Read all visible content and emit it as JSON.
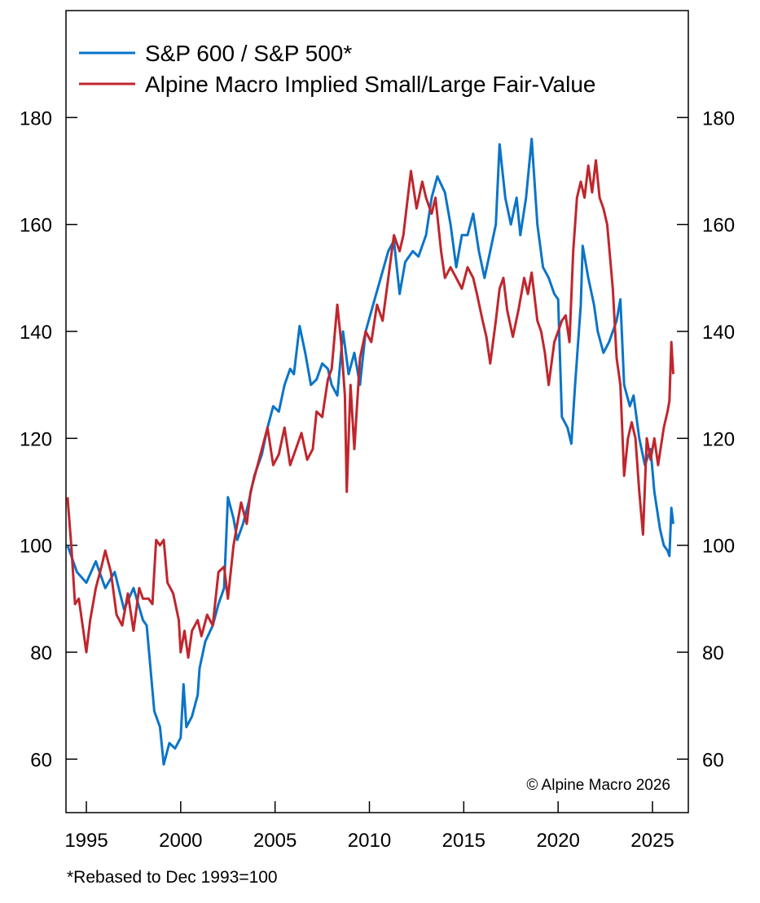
{
  "chart_data": {
    "type": "line",
    "title": "",
    "xlabel": "",
    "ylabel": "",
    "xlim": [
      1993.92,
      2026.9
    ],
    "ylim": [
      50,
      200
    ],
    "x_ticks": [
      1995,
      2000,
      2005,
      2010,
      2015,
      2020,
      2025
    ],
    "x_tick_labels": [
      "1995",
      "2000",
      "2005",
      "2010",
      "2015",
      "2020",
      "2025"
    ],
    "y_ticks": [
      60,
      80,
      100,
      120,
      140,
      160,
      180
    ],
    "y_tick_labels": [
      "60",
      "80",
      "100",
      "120",
      "140",
      "160",
      "180"
    ],
    "y_axis_sides": [
      "left",
      "right"
    ],
    "grid": false,
    "legend_placement": "top-left",
    "annotation": "© Alpine Macro 2026",
    "footnote": "*Rebased to Dec 1993=100",
    "series": [
      {
        "name": "S&P 600 / S&P 500*",
        "color": "#0a74c9",
        "points": [
          [
            1994.0,
            100
          ],
          [
            1994.5,
            95
          ],
          [
            1995.0,
            93
          ],
          [
            1995.5,
            97
          ],
          [
            1996.0,
            92
          ],
          [
            1996.5,
            95
          ],
          [
            1997.0,
            88
          ],
          [
            1997.5,
            92
          ],
          [
            1998.0,
            86
          ],
          [
            1998.2,
            85
          ],
          [
            1998.6,
            69
          ],
          [
            1998.9,
            66
          ],
          [
            1999.1,
            59
          ],
          [
            1999.4,
            63
          ],
          [
            1999.7,
            62
          ],
          [
            2000.0,
            64
          ],
          [
            2000.15,
            74
          ],
          [
            2000.3,
            66
          ],
          [
            2000.6,
            68
          ],
          [
            2000.9,
            72
          ],
          [
            2001.0,
            77
          ],
          [
            2001.3,
            82
          ],
          [
            2001.7,
            85
          ],
          [
            2002.0,
            89
          ],
          [
            2002.3,
            92
          ],
          [
            2002.5,
            109
          ],
          [
            2002.8,
            105
          ],
          [
            2003.0,
            101
          ],
          [
            2003.3,
            104
          ],
          [
            2003.6,
            108
          ],
          [
            2003.9,
            113
          ],
          [
            2004.3,
            117
          ],
          [
            2004.6,
            122
          ],
          [
            2004.9,
            126
          ],
          [
            2005.2,
            125
          ],
          [
            2005.5,
            130
          ],
          [
            2005.8,
            133
          ],
          [
            2006.0,
            132
          ],
          [
            2006.3,
            141
          ],
          [
            2006.6,
            136
          ],
          [
            2006.9,
            130
          ],
          [
            2007.2,
            131
          ],
          [
            2007.5,
            134
          ],
          [
            2007.8,
            133
          ],
          [
            2008.0,
            130
          ],
          [
            2008.3,
            128
          ],
          [
            2008.6,
            140
          ],
          [
            2008.9,
            132
          ],
          [
            2009.2,
            136
          ],
          [
            2009.5,
            130
          ],
          [
            2009.8,
            140
          ],
          [
            2010.2,
            145
          ],
          [
            2010.6,
            150
          ],
          [
            2011.0,
            155
          ],
          [
            2011.3,
            157
          ],
          [
            2011.6,
            147
          ],
          [
            2011.9,
            153
          ],
          [
            2012.3,
            155
          ],
          [
            2012.6,
            154
          ],
          [
            2013.0,
            158
          ],
          [
            2013.3,
            165
          ],
          [
            2013.6,
            169
          ],
          [
            2014.0,
            166
          ],
          [
            2014.3,
            160
          ],
          [
            2014.6,
            152
          ],
          [
            2014.9,
            158
          ],
          [
            2015.2,
            158
          ],
          [
            2015.5,
            162
          ],
          [
            2015.8,
            155
          ],
          [
            2016.1,
            150
          ],
          [
            2016.4,
            155
          ],
          [
            2016.7,
            160
          ],
          [
            2016.9,
            175
          ],
          [
            2017.2,
            165
          ],
          [
            2017.5,
            160
          ],
          [
            2017.8,
            165
          ],
          [
            2018.0,
            158
          ],
          [
            2018.3,
            165
          ],
          [
            2018.6,
            176
          ],
          [
            2018.9,
            160
          ],
          [
            2019.2,
            152
          ],
          [
            2019.5,
            150
          ],
          [
            2019.8,
            147
          ],
          [
            2020.0,
            146
          ],
          [
            2020.2,
            124
          ],
          [
            2020.5,
            122
          ],
          [
            2020.7,
            119
          ],
          [
            2020.9,
            130
          ],
          [
            2021.2,
            145
          ],
          [
            2021.3,
            156
          ],
          [
            2021.6,
            150
          ],
          [
            2021.9,
            145
          ],
          [
            2022.1,
            140
          ],
          [
            2022.4,
            136
          ],
          [
            2022.7,
            138
          ],
          [
            2022.9,
            140
          ],
          [
            2023.1,
            142
          ],
          [
            2023.3,
            146
          ],
          [
            2023.5,
            130
          ],
          [
            2023.8,
            126
          ],
          [
            2024.0,
            128
          ],
          [
            2024.3,
            120
          ],
          [
            2024.6,
            115
          ],
          [
            2024.9,
            118
          ],
          [
            2025.1,
            110
          ],
          [
            2025.4,
            103
          ],
          [
            2025.6,
            100
          ],
          [
            2025.8,
            99
          ],
          [
            2025.9,
            98
          ],
          [
            2026.0,
            107
          ],
          [
            2026.1,
            104
          ]
        ]
      },
      {
        "name": "Alpine Macro Implied Small/Large Fair-Value",
        "color": "#c0262d",
        "points": [
          [
            1994.0,
            109
          ],
          [
            1994.2,
            100
          ],
          [
            1994.4,
            89
          ],
          [
            1994.6,
            90
          ],
          [
            1994.8,
            85
          ],
          [
            1995.0,
            80
          ],
          [
            1995.2,
            86
          ],
          [
            1995.5,
            92
          ],
          [
            1995.8,
            96
          ],
          [
            1996.0,
            99
          ],
          [
            1996.3,
            95
          ],
          [
            1996.6,
            87
          ],
          [
            1996.9,
            85
          ],
          [
            1997.2,
            91
          ],
          [
            1997.5,
            84
          ],
          [
            1997.8,
            92
          ],
          [
            1998.0,
            90
          ],
          [
            1998.3,
            90
          ],
          [
            1998.5,
            89
          ],
          [
            1998.7,
            101
          ],
          [
            1998.9,
            100
          ],
          [
            1999.1,
            101
          ],
          [
            1999.3,
            93
          ],
          [
            1999.6,
            91
          ],
          [
            1999.9,
            86
          ],
          [
            2000.0,
            80
          ],
          [
            2000.2,
            84
          ],
          [
            2000.4,
            79
          ],
          [
            2000.6,
            84
          ],
          [
            2000.9,
            86
          ],
          [
            2001.1,
            83
          ],
          [
            2001.4,
            87
          ],
          [
            2001.7,
            85
          ],
          [
            2002.0,
            95
          ],
          [
            2002.3,
            96
          ],
          [
            2002.5,
            90
          ],
          [
            2002.8,
            100
          ],
          [
            2003.0,
            104
          ],
          [
            2003.2,
            108
          ],
          [
            2003.5,
            104
          ],
          [
            2003.7,
            110
          ],
          [
            2004.0,
            114
          ],
          [
            2004.3,
            118
          ],
          [
            2004.6,
            122
          ],
          [
            2004.9,
            115
          ],
          [
            2005.2,
            117
          ],
          [
            2005.5,
            122
          ],
          [
            2005.8,
            115
          ],
          [
            2006.1,
            118
          ],
          [
            2006.4,
            121
          ],
          [
            2006.7,
            116
          ],
          [
            2007.0,
            118
          ],
          [
            2007.2,
            125
          ],
          [
            2007.5,
            124
          ],
          [
            2007.8,
            131
          ],
          [
            2008.0,
            133
          ],
          [
            2008.3,
            145
          ],
          [
            2008.5,
            138
          ],
          [
            2008.7,
            128
          ],
          [
            2008.8,
            110
          ],
          [
            2009.0,
            130
          ],
          [
            2009.2,
            118
          ],
          [
            2009.5,
            135
          ],
          [
            2009.8,
            140
          ],
          [
            2010.1,
            138
          ],
          [
            2010.4,
            145
          ],
          [
            2010.7,
            142
          ],
          [
            2011.0,
            150
          ],
          [
            2011.3,
            158
          ],
          [
            2011.6,
            155
          ],
          [
            2011.8,
            158
          ],
          [
            2012.0,
            164
          ],
          [
            2012.2,
            170
          ],
          [
            2012.5,
            163
          ],
          [
            2012.8,
            168
          ],
          [
            2013.0,
            165
          ],
          [
            2013.3,
            162
          ],
          [
            2013.5,
            165
          ],
          [
            2013.8,
            155
          ],
          [
            2014.0,
            150
          ],
          [
            2014.3,
            152
          ],
          [
            2014.6,
            150
          ],
          [
            2014.9,
            148
          ],
          [
            2015.2,
            152
          ],
          [
            2015.5,
            150
          ],
          [
            2015.7,
            147
          ],
          [
            2016.0,
            142
          ],
          [
            2016.2,
            139
          ],
          [
            2016.4,
            134
          ],
          [
            2016.7,
            142
          ],
          [
            2016.9,
            148
          ],
          [
            2017.1,
            150
          ],
          [
            2017.3,
            144
          ],
          [
            2017.6,
            139
          ],
          [
            2017.9,
            144
          ],
          [
            2018.2,
            150
          ],
          [
            2018.4,
            147
          ],
          [
            2018.6,
            151
          ],
          [
            2018.9,
            142
          ],
          [
            2019.1,
            140
          ],
          [
            2019.3,
            136
          ],
          [
            2019.5,
            130
          ],
          [
            2019.8,
            138
          ],
          [
            2020.0,
            140
          ],
          [
            2020.2,
            142
          ],
          [
            2020.4,
            143
          ],
          [
            2020.6,
            138
          ],
          [
            2020.8,
            155
          ],
          [
            2021.0,
            165
          ],
          [
            2021.2,
            168
          ],
          [
            2021.4,
            165
          ],
          [
            2021.6,
            171
          ],
          [
            2021.8,
            166
          ],
          [
            2022.0,
            172
          ],
          [
            2022.2,
            165
          ],
          [
            2022.4,
            163
          ],
          [
            2022.6,
            160
          ],
          [
            2022.9,
            148
          ],
          [
            2023.1,
            135
          ],
          [
            2023.3,
            130
          ],
          [
            2023.5,
            113
          ],
          [
            2023.7,
            120
          ],
          [
            2023.9,
            123
          ],
          [
            2024.1,
            120
          ],
          [
            2024.3,
            110
          ],
          [
            2024.5,
            102
          ],
          [
            2024.7,
            120
          ],
          [
            2024.9,
            116
          ],
          [
            2025.1,
            120
          ],
          [
            2025.3,
            115
          ],
          [
            2025.6,
            122
          ],
          [
            2025.8,
            125
          ],
          [
            2025.9,
            127
          ],
          [
            2026.0,
            138
          ],
          [
            2026.1,
            132
          ]
        ]
      }
    ]
  }
}
